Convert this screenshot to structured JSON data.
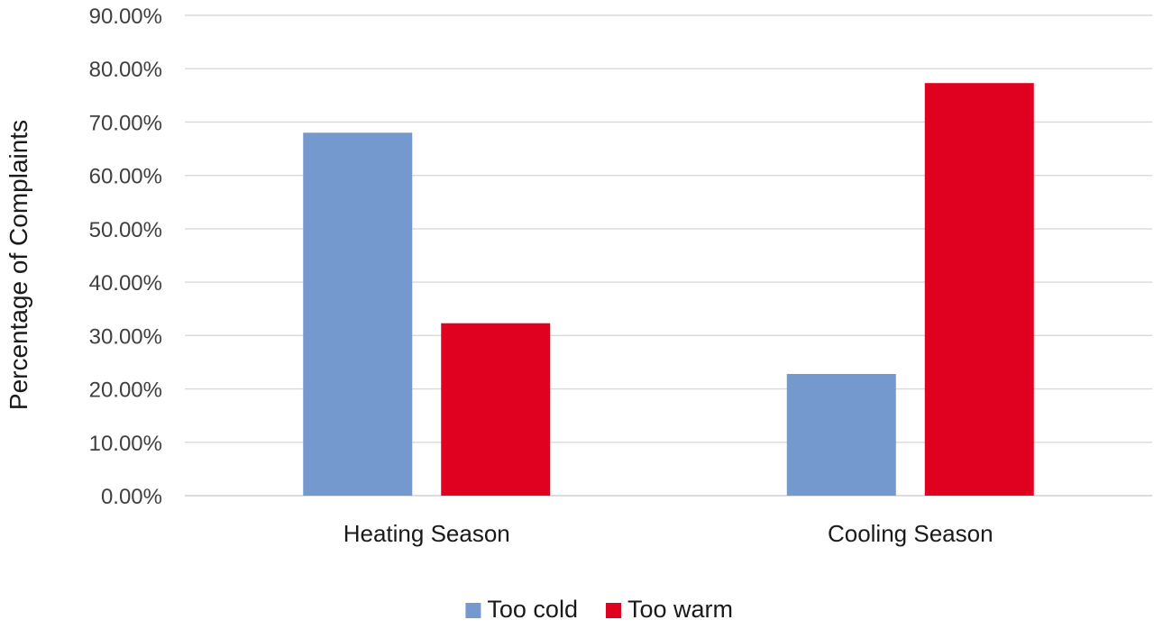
{
  "chart_data": {
    "type": "bar",
    "title": "",
    "xlabel": "",
    "ylabel": "Percentage of Complaints",
    "categories": [
      "Heating Season",
      "Cooling Season"
    ],
    "series": [
      {
        "name": "Too cold",
        "color": "#7399cf",
        "values": [
          0.68,
          0.228
        ]
      },
      {
        "name": "Too warm",
        "color": "#e0001f",
        "values": [
          0.323,
          0.773
        ]
      }
    ],
    "ylim": [
      0,
      0.9
    ],
    "ytick_step": 0.1,
    "ytick_labels": [
      "0.00%",
      "10.00%",
      "20.00%",
      "30.00%",
      "40.00%",
      "50.00%",
      "60.00%",
      "70.00%",
      "80.00%",
      "90.00%"
    ],
    "grid": true,
    "legend_position": "bottom"
  }
}
